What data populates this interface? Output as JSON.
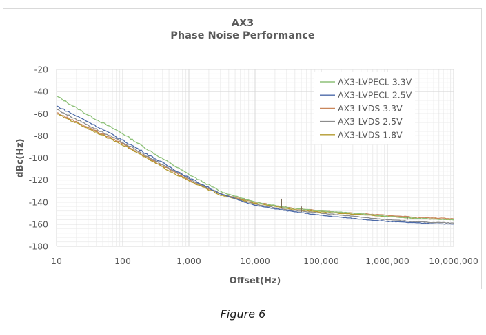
{
  "chart_data": {
    "type": "line",
    "title": "AX3",
    "subtitle": "Phase Noise Performance",
    "xlabel": "Offset(Hz)",
    "ylabel": "dBc(Hz)",
    "xscale": "log",
    "xlim": [
      10,
      10000000
    ],
    "ylim": [
      -180,
      -20
    ],
    "x_ticks": [
      10,
      100,
      1000,
      10000,
      100000,
      1000000,
      10000000
    ],
    "x_tick_labels": [
      "10",
      "100",
      "1,000",
      "10,000",
      "100,000",
      "1,000,000",
      "10,000,000"
    ],
    "y_ticks": [
      -20,
      -40,
      -60,
      -80,
      -100,
      -120,
      -140,
      -160,
      -180
    ],
    "y_tick_labels": [
      "-20",
      "-40",
      "-60",
      "-80",
      "-100",
      "-120",
      "-140",
      "-160",
      "-180"
    ],
    "grid": true,
    "minor_grid": true,
    "legend_position": "upper right (inside)",
    "x": [
      10,
      31.6,
      100,
      316,
      1000,
      3160,
      10000,
      31600,
      100000,
      316000,
      1000000,
      3160000,
      10000000
    ],
    "series": [
      {
        "name": "AX3-LVPECL 3.3V",
        "color": "#8dc178",
        "values": [
          -44,
          -62,
          -78,
          -97,
          -115,
          -131,
          -140,
          -145,
          -148,
          -150,
          -153,
          -155,
          -156
        ]
      },
      {
        "name": "AX3-LVPECL 2.5V",
        "color": "#4c6aa8",
        "values": [
          -53,
          -68,
          -84,
          -101,
          -118,
          -133,
          -143,
          -148,
          -152,
          -155,
          -157.5,
          -159,
          -160
        ]
      },
      {
        "name": "AX3-LVDS 3.3V",
        "color": "#c9865a",
        "values": [
          -59,
          -73,
          -87,
          -104,
          -120,
          -133,
          -140,
          -145,
          -148,
          -150,
          -152,
          -154,
          -155
        ]
      },
      {
        "name": "AX3-LVDS 2.5V",
        "color": "#8c8c8c",
        "values": [
          -56,
          -71,
          -86,
          -103,
          -119,
          -133,
          -142,
          -147,
          -150,
          -153,
          -156,
          -158,
          -159
        ]
      },
      {
        "name": "AX3-LVDS 1.8V",
        "color": "#b39a2e",
        "values": [
          -60,
          -74,
          -88,
          -105,
          -121,
          -134,
          -141,
          -146,
          -149,
          -151,
          -153,
          -155,
          -156
        ]
      }
    ],
    "annotations": [
      "Spurs near 25 kHz and 50 kHz offsets"
    ]
  },
  "caption": "Figure 6"
}
